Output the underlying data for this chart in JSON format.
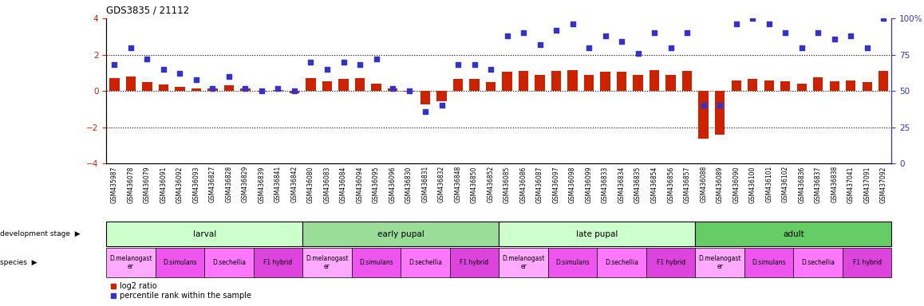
{
  "title": "GDS3835 / 21112",
  "samples": [
    "GSM435987",
    "GSM436078",
    "GSM436079",
    "GSM436091",
    "GSM436092",
    "GSM436093",
    "GSM436827",
    "GSM436828",
    "GSM436829",
    "GSM436839",
    "GSM436841",
    "GSM436842",
    "GSM436080",
    "GSM436083",
    "GSM436084",
    "GSM436094",
    "GSM436095",
    "GSM436096",
    "GSM436830",
    "GSM436831",
    "GSM436832",
    "GSM436848",
    "GSM436850",
    "GSM436852",
    "GSM436085",
    "GSM436086",
    "GSM436087",
    "GSM436097",
    "GSM436098",
    "GSM436099",
    "GSM436833",
    "GSM436834",
    "GSM436835",
    "GSM436854",
    "GSM436856",
    "GSM436857",
    "GSM436088",
    "GSM436089",
    "GSM436090",
    "GSM436100",
    "GSM436101",
    "GSM436102",
    "GSM436836",
    "GSM436837",
    "GSM436838",
    "GSM437041",
    "GSM437091",
    "GSM437092"
  ],
  "log2ratio": [
    0.7,
    0.8,
    0.5,
    0.35,
    0.25,
    0.15,
    0.15,
    0.3,
    0.15,
    -0.05,
    0.05,
    -0.1,
    0.7,
    0.55,
    0.65,
    0.7,
    0.4,
    0.15,
    -0.05,
    -0.75,
    -0.55,
    0.65,
    0.65,
    0.5,
    1.05,
    1.1,
    0.9,
    1.1,
    1.15,
    0.9,
    1.05,
    1.05,
    0.9,
    1.15,
    0.9,
    1.1,
    -2.6,
    -2.4,
    0.6,
    0.65,
    0.6,
    0.55,
    0.4,
    0.75,
    0.55,
    0.6,
    0.5,
    1.1
  ],
  "percentile": [
    68,
    80,
    72,
    65,
    62,
    58,
    52,
    60,
    52,
    50,
    52,
    50,
    70,
    65,
    70,
    68,
    72,
    52,
    50,
    36,
    40,
    68,
    68,
    65,
    88,
    90,
    82,
    92,
    96,
    80,
    88,
    84,
    76,
    90,
    80,
    90,
    40,
    40,
    96,
    100,
    96,
    90,
    80,
    90,
    86,
    88,
    80,
    100
  ],
  "dev_stage_groups": [
    {
      "label": "larval",
      "start": 0,
      "end": 12,
      "color": "#ccffcc"
    },
    {
      "label": "early pupal",
      "start": 12,
      "end": 24,
      "color": "#99dd99"
    },
    {
      "label": "late pupal",
      "start": 24,
      "end": 36,
      "color": "#ccffcc"
    },
    {
      "label": "adult",
      "start": 36,
      "end": 48,
      "color": "#66cc66"
    }
  ],
  "species_groups": [
    {
      "label": "D.melanogast\ner",
      "start": 0,
      "end": 3,
      "color": "#ffaaff"
    },
    {
      "label": "D.simulans",
      "start": 3,
      "end": 6,
      "color": "#ee55ee"
    },
    {
      "label": "D.sechellia",
      "start": 6,
      "end": 9,
      "color": "#ff77ff"
    },
    {
      "label": "F1 hybrid",
      "start": 9,
      "end": 12,
      "color": "#dd44dd"
    },
    {
      "label": "D.melanogast\ner",
      "start": 12,
      "end": 15,
      "color": "#ffaaff"
    },
    {
      "label": "D.simulans",
      "start": 15,
      "end": 18,
      "color": "#ee55ee"
    },
    {
      "label": "D.sechellia",
      "start": 18,
      "end": 21,
      "color": "#ff77ff"
    },
    {
      "label": "F1 hybrid",
      "start": 21,
      "end": 24,
      "color": "#dd44dd"
    },
    {
      "label": "D.melanogast\ner",
      "start": 24,
      "end": 27,
      "color": "#ffaaff"
    },
    {
      "label": "D.simulans",
      "start": 27,
      "end": 30,
      "color": "#ee55ee"
    },
    {
      "label": "D.sechellia",
      "start": 30,
      "end": 33,
      "color": "#ff77ff"
    },
    {
      "label": "F1 hybrid",
      "start": 33,
      "end": 36,
      "color": "#dd44dd"
    },
    {
      "label": "D.melanogast\ner",
      "start": 36,
      "end": 39,
      "color": "#ffaaff"
    },
    {
      "label": "D.simulans",
      "start": 39,
      "end": 42,
      "color": "#ee55ee"
    },
    {
      "label": "D.sechellia",
      "start": 42,
      "end": 45,
      "color": "#ff77ff"
    },
    {
      "label": "F1 hybrid",
      "start": 45,
      "end": 48,
      "color": "#dd44dd"
    }
  ],
  "bar_color": "#cc2200",
  "dot_color": "#3333cc",
  "ylim_left": [
    -4,
    4
  ],
  "ylim_right": [
    0,
    100
  ],
  "yticks_left": [
    -4,
    -2,
    0,
    2,
    4
  ],
  "yticks_right": [
    0,
    25,
    50,
    75,
    100
  ],
  "hlines": [
    -2,
    0,
    2
  ],
  "bg_color": "#ffffff"
}
